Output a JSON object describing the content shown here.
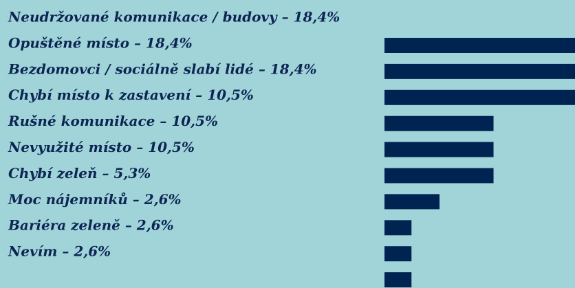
{
  "chart_data": {
    "type": "bar",
    "categories": [
      "Neudržované komunikace / budovy – 18,4%",
      "Opuštěné místo – 18,4%",
      "Bezdomovci / sociálně slabí lidé – 18,4%",
      "Chybí místo k zastavení – 10,5%",
      "Rušné komunikace – 10,5%",
      "Nevyužité místo – 10,5%",
      "Chybí zeleň – 5,3%",
      "Moc nájemníků – 2,6%",
      "Bariéra zeleně – 2,6%",
      "Nevím – 2,6%"
    ],
    "values": [
      18.4,
      18.4,
      18.4,
      10.5,
      10.5,
      10.5,
      5.3,
      2.6,
      2.6,
      2.6
    ],
    "color": "#002452"
  }
}
